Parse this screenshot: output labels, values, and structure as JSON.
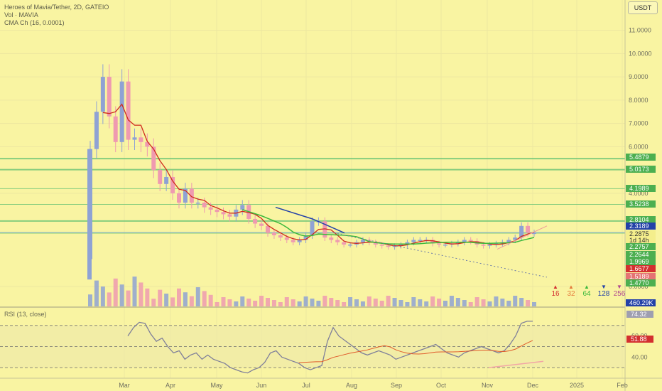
{
  "header": {
    "symbol_line": "Heroes of Mavia/Tether, 2D, GATEIO",
    "volume_line": "Vol · MAVIA",
    "cma_line": "CMA Ch (16, 0.0001)"
  },
  "currency_button": "USDT",
  "colors": {
    "background": "#f9f4a2",
    "up": "#8fa2d4",
    "down": "#ef9ab0",
    "level_line": "#7ac97a",
    "ma_red": "#cf2a1e",
    "ma_green": "#3cb93c",
    "ma_blue": "#2341a8",
    "rsi_line": "#7f7f9a",
    "rsi_ma": "#e05a2a"
  },
  "price_axis": {
    "ticks": [
      "11.0000",
      "10.0000",
      "9.0000",
      "8.0000",
      "7.0000",
      "6.0000",
      "5.0000",
      "4.0000",
      "0.0000"
    ],
    "labels": [
      {
        "text": "5.4879",
        "color": "#4caf50"
      },
      {
        "text": "5.0173",
        "color": "#4caf50"
      },
      {
        "text": "4.1989",
        "color": "#4caf50"
      },
      {
        "text": "3.5238",
        "color": "#4caf50"
      },
      {
        "text": "2.8104",
        "color": "#4caf50"
      },
      {
        "text": "2.3189",
        "color": "#2341a8"
      },
      {
        "text": "2.2875",
        "color": "#f4ee8c"
      },
      {
        "text": "1d 14h",
        "color": "#f4ee8c"
      },
      {
        "text": "2.2757",
        "color": "#4caf50"
      },
      {
        "text": "2.2644",
        "color": "#4caf50"
      },
      {
        "text": "1.9969",
        "color": "#4caf50"
      },
      {
        "text": "1.6677",
        "color": "#d32f2f"
      },
      {
        "text": "1.5189",
        "color": "#e57373"
      },
      {
        "text": "1.4770",
        "color": "#4caf50"
      },
      {
        "text": "460.29K",
        "color": "#2341a8"
      }
    ]
  },
  "rsi": {
    "title": "RSI (13, close)",
    "ticks": [
      "60.00",
      "40.00"
    ],
    "labels": [
      {
        "text": "74.32",
        "color": "#9e9eb0"
      },
      {
        "text": "51.88",
        "color": "#d32f2f"
      }
    ]
  },
  "signals": [
    {
      "value": "16",
      "arrow": "▲",
      "color": "#d32f2f"
    },
    {
      "value": "32",
      "arrow": "▲",
      "color": "#e57b3c"
    },
    {
      "value": "64",
      "arrow": "▲",
      "color": "#3cb93c"
    },
    {
      "value": "128",
      "arrow": "▼",
      "color": "#2341a8"
    },
    {
      "value": "256",
      "arrow": "▼",
      "color": "#b0478f"
    }
  ],
  "time_axis": [
    "Mar",
    "Apr",
    "May",
    "Jun",
    "Jul",
    "Aug",
    "Sep",
    "Oct",
    "Nov",
    "Dec",
    "2025",
    "Feb"
  ],
  "chart_data": {
    "type": "candlestick",
    "ylim": [
      0,
      11.5
    ],
    "horizontal_levels": [
      5.4879,
      5.0173,
      4.1989,
      3.5238,
      2.8104,
      2.3189,
      2.2875
    ],
    "close_series_approx": [
      {
        "x": "Feb 27",
        "y": 5.9
      },
      {
        "x": "Mar 1",
        "y": 7.5
      },
      {
        "x": "Mar 5",
        "y": 9.0
      },
      {
        "x": "Mar 9",
        "y": 7.3
      },
      {
        "x": "Mar 13",
        "y": 6.2
      },
      {
        "x": "Mar 17",
        "y": 8.8
      },
      {
        "x": "Mar 21",
        "y": 6.3
      },
      {
        "x": "Mar 25",
        "y": 6.4
      },
      {
        "x": "Mar 29",
        "y": 6.2
      },
      {
        "x": "Apr 2",
        "y": 6.0
      },
      {
        "x": "Apr 6",
        "y": 5.0
      },
      {
        "x": "Apr 10",
        "y": 4.4
      },
      {
        "x": "Apr 14",
        "y": 4.7
      },
      {
        "x": "Apr 18",
        "y": 4.0
      },
      {
        "x": "Apr 22",
        "y": 3.6
      },
      {
        "x": "Apr 26",
        "y": 4.2
      },
      {
        "x": "Apr 30",
        "y": 3.6
      },
      {
        "x": "May 4",
        "y": 3.6
      },
      {
        "x": "May 8",
        "y": 3.4
      },
      {
        "x": "May 12",
        "y": 3.3
      },
      {
        "x": "May 16",
        "y": 3.2
      },
      {
        "x": "May 20",
        "y": 3.1
      },
      {
        "x": "May 24",
        "y": 3.0
      },
      {
        "x": "May 28",
        "y": 3.3
      },
      {
        "x": "Jun 1",
        "y": 3.5
      },
      {
        "x": "Jun 5",
        "y": 2.9
      },
      {
        "x": "Jun 9",
        "y": 2.7
      },
      {
        "x": "Jun 13",
        "y": 2.6
      },
      {
        "x": "Jun 17",
        "y": 2.3
      },
      {
        "x": "Jun 21",
        "y": 2.2
      },
      {
        "x": "Jun 25",
        "y": 2.1
      },
      {
        "x": "Jun 29",
        "y": 2.0
      },
      {
        "x": "Jul 3",
        "y": 1.9
      },
      {
        "x": "Jul 7",
        "y": 2.0
      },
      {
        "x": "Jul 11",
        "y": 2.2
      },
      {
        "x": "Jul 15",
        "y": 2.8
      },
      {
        "x": "Jul 19",
        "y": 2.8
      },
      {
        "x": "Jul 23",
        "y": 2.1
      },
      {
        "x": "Jul 27",
        "y": 2.0
      },
      {
        "x": "Jul 31",
        "y": 1.9
      },
      {
        "x": "Aug 4",
        "y": 1.8
      },
      {
        "x": "Aug 8",
        "y": 1.8
      },
      {
        "x": "Aug 12",
        "y": 1.9
      },
      {
        "x": "Aug 16",
        "y": 2.0
      },
      {
        "x": "Aug 20",
        "y": 1.9
      },
      {
        "x": "Aug 24",
        "y": 1.8
      },
      {
        "x": "Aug 28",
        "y": 1.75
      },
      {
        "x": "Sep 1",
        "y": 1.7
      },
      {
        "x": "Sep 5",
        "y": 1.75
      },
      {
        "x": "Sep 9",
        "y": 1.8
      },
      {
        "x": "Sep 13",
        "y": 1.9
      },
      {
        "x": "Sep 17",
        "y": 2.0
      },
      {
        "x": "Sep 21",
        "y": 2.0
      },
      {
        "x": "Sep 25",
        "y": 2.0
      },
      {
        "x": "Sep 29",
        "y": 1.85
      },
      {
        "x": "Oct 3",
        "y": 1.8
      },
      {
        "x": "Oct 7",
        "y": 1.8
      },
      {
        "x": "Oct 11",
        "y": 1.85
      },
      {
        "x": "Oct 15",
        "y": 1.9
      },
      {
        "x": "Oct 19",
        "y": 2.0
      },
      {
        "x": "Oct 23",
        "y": 1.95
      },
      {
        "x": "Oct 27",
        "y": 1.8
      },
      {
        "x": "Oct 31",
        "y": 1.75
      },
      {
        "x": "Nov 4",
        "y": 1.8
      },
      {
        "x": "Nov 8",
        "y": 1.85
      },
      {
        "x": "Nov 12",
        "y": 1.9
      },
      {
        "x": "Nov 16",
        "y": 2.0
      },
      {
        "x": "Nov 20",
        "y": 2.1
      },
      {
        "x": "Nov 24",
        "y": 2.6
      },
      {
        "x": "Nov 28",
        "y": 2.3
      },
      {
        "x": "Dec 2",
        "y": 2.3
      }
    ],
    "rsi_series_approx": [
      60,
      68,
      73,
      72,
      62,
      55,
      58,
      50,
      44,
      46,
      38,
      42,
      44,
      38,
      42,
      38,
      36,
      34,
      30,
      28,
      26,
      25,
      28,
      30,
      35,
      44,
      46,
      40,
      38,
      36,
      34,
      30,
      28,
      30,
      32,
      55,
      68,
      60,
      56,
      52,
      48,
      44,
      42,
      44,
      46,
      44,
      42,
      38,
      40,
      42,
      44,
      46,
      48,
      50,
      52,
      48,
      44,
      42,
      40,
      44,
      46,
      48,
      50,
      48,
      46,
      44,
      46,
      52,
      60,
      72,
      74,
      74
    ],
    "rsi_ylim": [
      20,
      82
    ]
  }
}
